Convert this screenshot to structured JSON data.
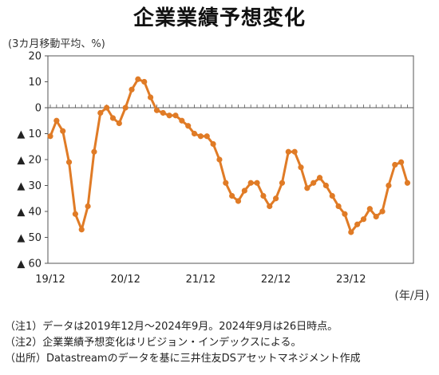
{
  "title": "企業業績予想変化",
  "unit_label": "(3カ月移動平均、%)",
  "x_unit_label": "(年/月)",
  "notes": [
    "（注1）データは2019年12月～2024年9月。2024年9月は26日時点。",
    "（注2）企業業績予想変化はリビジョン・インデックスによる。",
    "（出所）Datastreamのデータを基に三井住友DSアセットマネジメント作成"
  ],
  "colors": {
    "line": "#E07B26",
    "marker": "#E07B26",
    "axis": "#555555"
  },
  "chart_data": {
    "type": "line",
    "title": "企業業績予想変化",
    "ylabel": "(3カ月移動平均、%)",
    "xlabel": "(年/月)",
    "ylim": [
      -60,
      20
    ],
    "yticks": [
      20,
      10,
      0,
      -10,
      -20,
      -30,
      -40,
      -50,
      -60
    ],
    "ytick_labels": [
      "20",
      "10",
      "0",
      "▲ 10",
      "▲ 20",
      "▲ 30",
      "▲ 40",
      "▲ 50",
      "▲ 60"
    ],
    "xtick_labels": [
      "19/12",
      "20/12",
      "21/12",
      "22/12",
      "23/12"
    ],
    "grid": false,
    "series": [
      {
        "values": [
          -11,
          -5,
          -9,
          -21,
          -41,
          -47,
          -38,
          -17,
          -2,
          0,
          -4,
          -6,
          0,
          7,
          11,
          10,
          4,
          -1,
          -2,
          -3,
          -3,
          -5,
          -7,
          -10,
          -11,
          -11,
          -14,
          -20,
          -29,
          -34,
          -36,
          -32,
          -29,
          -29,
          -34,
          -38,
          -35,
          -29,
          -17,
          -17,
          -23,
          -31,
          -29,
          -27,
          -30,
          -34,
          -38,
          -41,
          -48,
          -45,
          -43,
          -39,
          -42,
          -40,
          -30,
          -22,
          -21,
          -29
        ]
      }
    ]
  }
}
